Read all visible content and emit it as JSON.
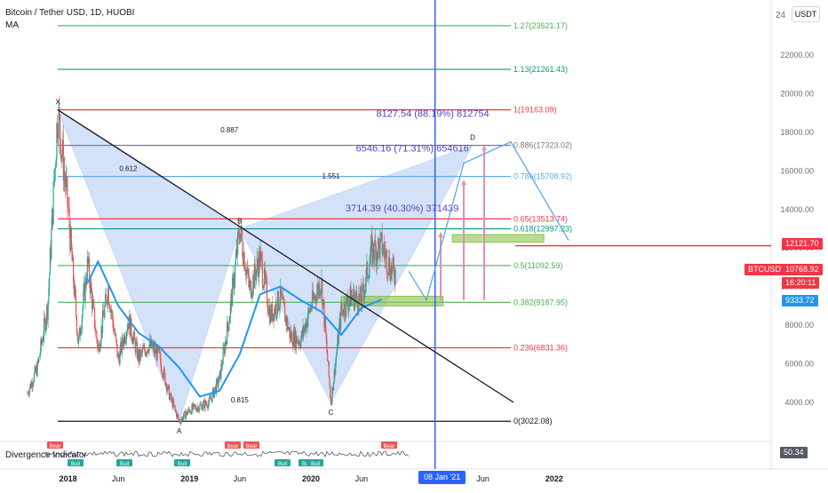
{
  "header": {
    "symbol_line": "Bitcoin / Tether USD, 1D, HUOBI",
    "indicator_line": "MA"
  },
  "currency_badge": "USDT",
  "oscillator": {
    "label": "Divergence Indicator",
    "value": "50.34",
    "tags": [
      "Bull",
      "Bull",
      "Bull",
      "Bull",
      "Bull",
      "Bull",
      "Bear",
      "Bear",
      "Bear",
      "Bear"
    ]
  },
  "price_tags": {
    "resistance": "12121.70",
    "symbol": "BTCUSDT",
    "last_price": "10768.92",
    "countdown": "16:20:11",
    "ma_value": "9333.72"
  },
  "date_tag": "08 Jan '21",
  "colors": {
    "ma": "#2196f3",
    "pattern_fill": "#c5d8f7",
    "fib_red": "#f23645",
    "fib_green": "#4caf50",
    "fib_teal": "#089981",
    "fib_gray": "#787b86",
    "fib_blue": "#5fa8e8",
    "fib_black": "#131722",
    "box": "#8bc34a",
    "tag_blue": "#2962ff"
  },
  "chart_data": {
    "type": "candlestick",
    "title": "Bitcoin / Tether USD, 1D, HUOBI",
    "ylim": [
      2600,
      24000
    ],
    "y_ticks": [
      4000,
      6000,
      8000,
      10000,
      12000,
      14000,
      16000,
      18000,
      20000,
      22000
    ],
    "y_tick_labels": [
      "4000.00",
      "6000.00",
      "8000.00",
      "10000.00",
      "12000.00",
      "14000.00",
      "16000.00",
      "18000.00",
      "20000.00",
      "22000.00"
    ],
    "x_range": [
      "2017-09",
      "2022-03"
    ],
    "x_ticks": [
      {
        "t": "2018-01",
        "label": "2018",
        "bold": true
      },
      {
        "t": "2018-06",
        "label": "Jun",
        "bold": false
      },
      {
        "t": "2019-01",
        "label": "2019",
        "bold": true
      },
      {
        "t": "2019-06",
        "label": "Jun",
        "bold": false
      },
      {
        "t": "2020-01",
        "label": "2020",
        "bold": true
      },
      {
        "t": "2020-06",
        "label": "Jun",
        "bold": false
      },
      {
        "t": "2021-06",
        "label": "Jun",
        "bold": false
      },
      {
        "t": "2022-01",
        "label": "2022",
        "bold": true
      }
    ],
    "price_path": [
      [
        "2017-09",
        4500
      ],
      [
        "2017-10",
        5800
      ],
      [
        "2017-11",
        9000
      ],
      [
        "2017-12",
        19163
      ],
      [
        "2018-01",
        14000
      ],
      [
        "2018-02",
        7000
      ],
      [
        "2018-03",
        11200
      ],
      [
        "2018-04",
        6700
      ],
      [
        "2018-05",
        9900
      ],
      [
        "2018-06",
        6200
      ],
      [
        "2018-07",
        8300
      ],
      [
        "2018-08",
        6300
      ],
      [
        "2018-09",
        7000
      ],
      [
        "2018-10",
        6400
      ],
      [
        "2018-11",
        4400
      ],
      [
        "2018-12",
        3022
      ],
      [
        "2019-01",
        3600
      ],
      [
        "2019-02",
        3800
      ],
      [
        "2019-03",
        4000
      ],
      [
        "2019-04",
        5200
      ],
      [
        "2019-05",
        8500
      ],
      [
        "2019-06",
        13000
      ],
      [
        "2019-07",
        9800
      ],
      [
        "2019-08",
        11500
      ],
      [
        "2019-09",
        8500
      ],
      [
        "2019-10",
        9400
      ],
      [
        "2019-11",
        7400
      ],
      [
        "2019-12",
        7200
      ],
      [
        "2020-01",
        9000
      ],
      [
        "2020-02",
        10300
      ],
      [
        "2020-03",
        4000
      ],
      [
        "2020-04",
        8700
      ],
      [
        "2020-05",
        9500
      ],
      [
        "2020-06",
        9300
      ],
      [
        "2020-07",
        11800
      ],
      [
        "2020-08",
        12100
      ],
      [
        "2020-09",
        10768.92
      ]
    ],
    "moving_average": [
      [
        "2018-03",
        10200
      ],
      [
        "2018-04",
        11300
      ],
      [
        "2018-06",
        9000
      ],
      [
        "2018-08",
        7600
      ],
      [
        "2018-10",
        6900
      ],
      [
        "2018-12",
        5800
      ],
      [
        "2019-02",
        4300
      ],
      [
        "2019-04",
        4600
      ],
      [
        "2019-06",
        6500
      ],
      [
        "2019-08",
        9600
      ],
      [
        "2019-10",
        10000
      ],
      [
        "2019-12",
        9300
      ],
      [
        "2020-02",
        8700
      ],
      [
        "2020-04",
        7500
      ],
      [
        "2020-06",
        8900
      ],
      [
        "2020-08",
        9333.72
      ]
    ],
    "fib_levels": [
      {
        "ratio": "1.27",
        "price": 23521.17
      },
      {
        "ratio": "1.13",
        "price": 21261.43
      },
      {
        "ratio": "1",
        "price": 19163.09
      },
      {
        "ratio": "0.886",
        "price": 17323.02
      },
      {
        "ratio": "0.786",
        "price": 15708.92
      },
      {
        "ratio": "0.65",
        "price": 13513.74
      },
      {
        "ratio": "0.618",
        "price": 12997.23
      },
      {
        "ratio": "0.5",
        "price": 11092.59
      },
      {
        "ratio": "0.382",
        "price": 9187.95
      },
      {
        "ratio": "0.236",
        "price": 6831.36
      },
      {
        "ratio": "0",
        "price": 3022.08
      }
    ],
    "pattern_points": [
      {
        "label": "X",
        "t": "2017-12",
        "price": 19163
      },
      {
        "label": "A",
        "t": "2018-12",
        "price": 3022
      },
      {
        "label": "B",
        "t": "2019-06",
        "price": 13000
      },
      {
        "label": "C",
        "t": "2020-03",
        "price": 4000
      },
      {
        "label": "D",
        "t": "2021-05",
        "price": 17323
      }
    ],
    "pattern_ratios": [
      {
        "text": "0.887",
        "at": [
          "2019-05",
          18000
        ]
      },
      {
        "text": "0.612",
        "at": [
          "2018-07",
          16000
        ]
      },
      {
        "text": "1.551",
        "at": [
          "2020-03",
          15600
        ]
      },
      {
        "text": "0.815",
        "at": [
          "2019-06",
          4000
        ]
      }
    ],
    "measurements": [
      {
        "text": "8127.54 (88.19%) 812754",
        "at": [
          "2021-01",
          18800
        ]
      },
      {
        "text": "6546.16 (71.31%) 654616",
        "at": [
          "2020-11",
          17000
        ]
      },
      {
        "text": "3714.39 (40.30%) 371439",
        "at": [
          "2020-10",
          13900
        ]
      }
    ],
    "zones": [
      {
        "from": "2020-04",
        "to": "2021-02",
        "low": 9000,
        "high": 9500
      },
      {
        "from": "2021-03",
        "to": "2021-12",
        "low": 12300,
        "high": 12700
      }
    ],
    "trendline": [
      [
        "2017-12",
        19163
      ],
      [
        "2021-09",
        4000
      ]
    ],
    "resistance_line": 12121.7,
    "vertical_marker": "2021-01-08"
  }
}
